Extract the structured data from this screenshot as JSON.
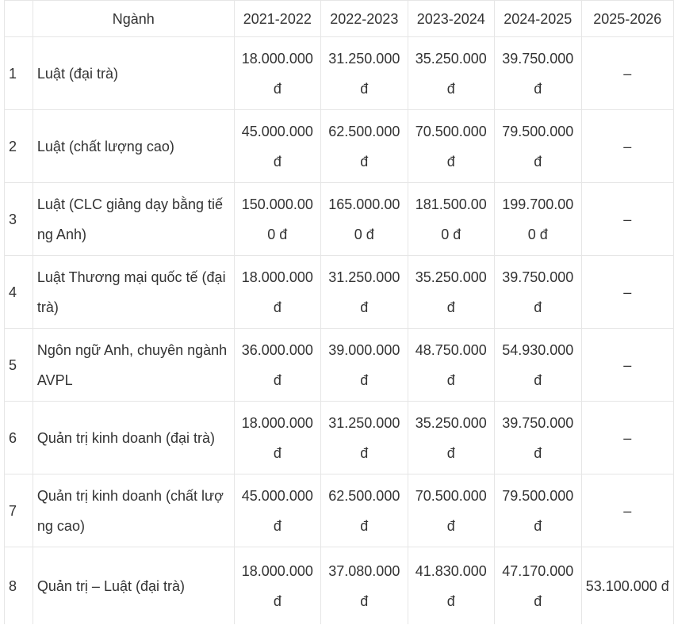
{
  "header": {
    "stt": "",
    "nganh": "Ngành",
    "years": [
      "2021-2022",
      "2022-2023",
      "2023-2024",
      "2024-2025",
      "2025-2026"
    ]
  },
  "rows": [
    {
      "stt": "1",
      "nganh": "Luật (đại trà)",
      "fees": [
        "18.000.000 đ",
        "31.250.000 đ",
        "35.250.000 đ",
        "39.750.000 đ",
        "–"
      ]
    },
    {
      "stt": "2",
      "nganh": "Luật (chất lượng cao)",
      "fees": [
        "45.000.000 đ",
        "62.500.000 đ",
        "70.500.000 đ",
        "79.500.000 đ",
        "–"
      ]
    },
    {
      "stt": "3",
      "nganh": "Luật (CLC giảng dạy bằng tiếng Anh)",
      "fees": [
        "150.000.000 đ",
        "165.000.000 đ",
        "181.500.000 đ",
        "199.700.000 đ",
        "–"
      ]
    },
    {
      "stt": "4",
      "nganh": "Luật Thương mại quốc tế (đại trà)",
      "fees": [
        "18.000.000 đ",
        "31.250.000 đ",
        "35.250.000 đ",
        "39.750.000 đ",
        "–"
      ]
    },
    {
      "stt": "5",
      "nganh": "Ngôn ngữ Anh, chuyên ngành AVPL",
      "fees": [
        "36.000.000 đ",
        "39.000.000 đ",
        "48.750.000 đ",
        "54.930.000 đ",
        "–"
      ]
    },
    {
      "stt": "6",
      "nganh": "Quản trị kinh doanh (đại trà)",
      "fees": [
        "18.000.000 đ",
        "31.250.000 đ",
        "35.250.000 đ",
        "39.750.000 đ",
        "–"
      ]
    },
    {
      "stt": "7",
      "nganh": "Quản trị kinh doanh (chất lượng cao)",
      "fees": [
        "45.000.000 đ",
        "62.500.000 đ",
        "70.500.000 đ",
        "79.500.000 đ",
        "–"
      ]
    },
    {
      "stt": "8",
      "nganh": "Quản trị – Luật (đại trà)",
      "fees": [
        "18.000.000 đ",
        "37.080.000 đ",
        "41.830.000 đ",
        "47.170.000 đ",
        "53.100.000 đ"
      ]
    }
  ]
}
